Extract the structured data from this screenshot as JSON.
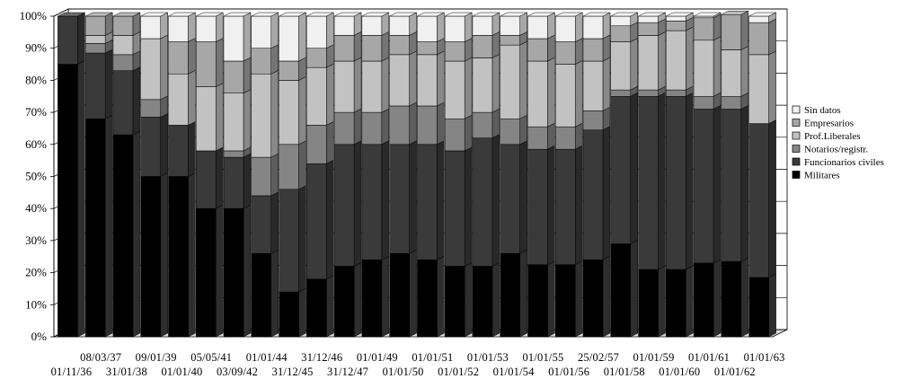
{
  "chart_data": {
    "type": "bar",
    "stacked": true,
    "percent": true,
    "three_d": true,
    "categories": [
      "01/11/36",
      "08/03/37",
      "31/01/38",
      "09/01/39",
      "01/01/40",
      "05/05/41",
      "03/09/42",
      "01/01/44",
      "31/12/45",
      "31/12/46",
      "31/12/47",
      "01/01/49",
      "01/01/50",
      "01/01/51",
      "01/01/52",
      "01/01/53",
      "01/01/54",
      "01/01/55",
      "01/01/56",
      "25/02/57",
      "01/01/58",
      "01/01/59",
      "01/01/60",
      "01/01/61",
      "01/01/62",
      "01/01/63"
    ],
    "x_tick_rows": [
      [
        "",
        "08/03/37",
        "09/01/39",
        "05/05/41",
        "01/01/44",
        "31/12/46",
        "01/01/49",
        "01/01/51",
        "01/01/53",
        "01/01/55",
        "25/02/57",
        "01/01/59",
        "01/01/61",
        "01/01/63"
      ],
      [
        "01/11/36",
        "31/01/38",
        "01/01/40",
        "03/09/42",
        "31/12/45",
        "31/12/47",
        "01/01/50",
        "01/01/52",
        "01/01/54",
        "01/01/56",
        "01/01/58",
        "01/01/60",
        "01/01/62"
      ]
    ],
    "series": [
      {
        "name": "Militares",
        "color": "#000000",
        "values": [
          85,
          68,
          63,
          50,
          50,
          40,
          40,
          26,
          14,
          18,
          22,
          24,
          26,
          24,
          22,
          22,
          26,
          22.5,
          22.5,
          24,
          29,
          21,
          21,
          23,
          23.5,
          18.5
        ]
      },
      {
        "name": "Funcionarios civiles",
        "color": "#3a3a3a",
        "values": [
          15,
          20.5,
          20,
          18.5,
          16,
          18,
          16,
          18,
          32,
          36,
          38,
          36,
          34,
          36,
          36,
          40,
          34,
          36,
          36,
          40.5,
          46,
          54,
          54,
          48,
          47.5,
          48
        ]
      },
      {
        "name": "Notarios/registr.",
        "color": "#858585",
        "values": [
          0,
          3,
          5,
          5.5,
          0,
          0,
          2,
          12,
          14,
          12,
          10,
          10,
          12,
          12,
          10,
          8,
          8,
          7,
          7,
          6,
          2,
          2,
          2,
          4,
          4,
          0
        ]
      },
      {
        "name": "Prof.Liberales",
        "color": "#c2c2c2",
        "values": [
          0,
          2.5,
          6,
          19,
          16,
          20,
          18,
          26,
          20,
          18,
          16,
          16,
          16,
          16,
          18,
          17,
          23,
          20.5,
          19.5,
          15.5,
          15,
          17,
          18.5,
          17.5,
          14.5,
          21.5
        ]
      },
      {
        "name": "Empresarios",
        "color": "#a7a7a7",
        "values": [
          0,
          6,
          6,
          0,
          10,
          14,
          10,
          8,
          6,
          6,
          8,
          8,
          6,
          4,
          6,
          7,
          3,
          7,
          7,
          7,
          5,
          4,
          3,
          7,
          11,
          10
        ]
      },
      {
        "name": "Sin datos",
        "color": "#f0f0f0",
        "values": [
          0,
          0,
          0,
          7,
          8,
          8,
          14,
          10,
          14,
          10,
          6,
          6,
          6,
          8,
          8,
          6,
          6,
          7,
          8,
          7,
          3,
          2,
          1.5,
          0.5,
          0,
          2
        ]
      }
    ],
    "y_ticks": [
      "0%",
      "10%",
      "20%",
      "30%",
      "40%",
      "50%",
      "60%",
      "70%",
      "80%",
      "90%",
      "100%"
    ],
    "ylim": [
      0,
      100
    ],
    "legend_order": [
      "Sin datos",
      "Empresarios",
      "Prof.Liberales",
      "Notarios/registr.",
      "Funcionarios civiles",
      "Militares"
    ],
    "legend_position": "right",
    "grid": true,
    "title": "",
    "xlabel": "",
    "ylabel": ""
  }
}
